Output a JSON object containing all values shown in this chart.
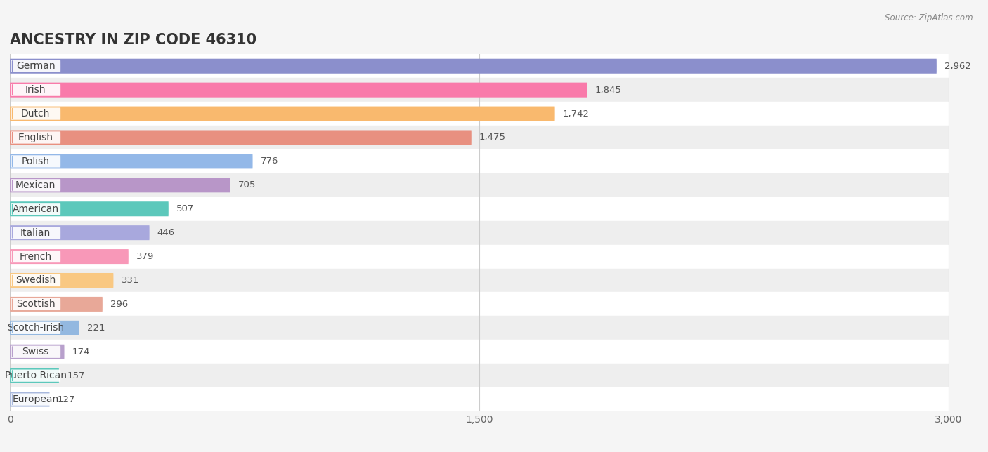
{
  "title": "ANCESTRY IN ZIP CODE 46310",
  "source": "Source: ZipAtlas.com",
  "categories": [
    "German",
    "Irish",
    "Dutch",
    "English",
    "Polish",
    "Mexican",
    "American",
    "Italian",
    "French",
    "Swedish",
    "Scottish",
    "Scotch-Irish",
    "Swiss",
    "Puerto Rican",
    "European"
  ],
  "values": [
    2962,
    1845,
    1742,
    1475,
    776,
    705,
    507,
    446,
    379,
    331,
    296,
    221,
    174,
    157,
    127
  ],
  "bar_colors": [
    "#8b8fcc",
    "#f97aaa",
    "#f9b96e",
    "#e89080",
    "#93b8e8",
    "#b896c8",
    "#5cc8bb",
    "#a8a8dd",
    "#f898b8",
    "#f9c882",
    "#e8a898",
    "#93b8e0",
    "#b8a0cc",
    "#5cc8bb",
    "#a8b8dd"
  ],
  "xlim": [
    0,
    3000
  ],
  "xticks": [
    0,
    1500,
    3000
  ],
  "xtick_labels": [
    "0",
    "1,500",
    "3,000"
  ],
  "background_color": "#f5f5f5",
  "row_colors": [
    "#ffffff",
    "#eeeeee"
  ],
  "title_fontsize": 15,
  "label_fontsize": 10,
  "value_fontsize": 9.5
}
